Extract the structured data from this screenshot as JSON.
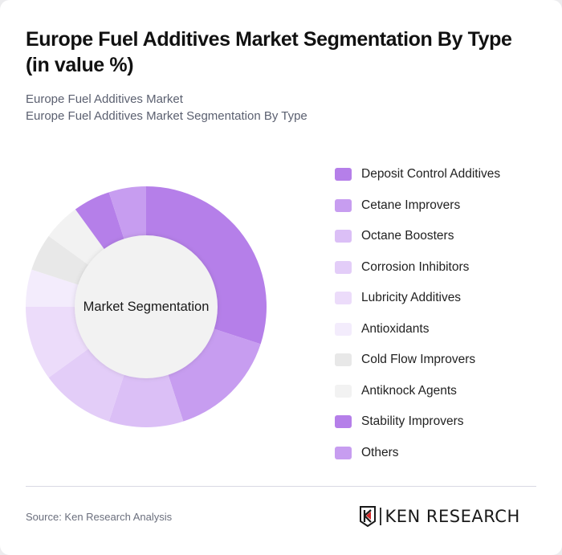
{
  "header": {
    "title": "Europe Fuel Additives Market Segmentation By Type (in value %)",
    "subtitle_line1": "Europe Fuel Additives Market",
    "subtitle_line2": "Europe Fuel Additives Market Segmentation By Type"
  },
  "chart": {
    "center_label": "Market Segmentation",
    "inner_color": "#f2f2f2"
  },
  "footer": {
    "source": "Source: Ken Research Analysis",
    "logo_text": "KEN RESEARCH",
    "logo_accent": "#d42a2a"
  },
  "chart_data": {
    "type": "pie",
    "subtype": "donut",
    "title": "Europe Fuel Additives Market Segmentation By Type (in value %)",
    "center_label": "Market Segmentation",
    "legend_position": "right",
    "categories": [
      "Deposit Control Additives",
      "Cetane Improvers",
      "Octane Boosters",
      "Corrosion Inhibitors",
      "Lubricity Additives",
      "Antioxidants",
      "Cold Flow Improvers",
      "Antiknock Agents",
      "Stability Improvers",
      "Others"
    ],
    "values": [
      30,
      15,
      10,
      10,
      10,
      5,
      5,
      5,
      5,
      5
    ],
    "colors": [
      "#b57fe9",
      "#c79df0",
      "#dbbff6",
      "#e3cdf8",
      "#ecdcfa",
      "#f3ecfc",
      "#e8e8e8",
      "#f2f2f2",
      "#b57fe9",
      "#c79df0"
    ],
    "unit": "%"
  },
  "legend": {
    "items": [
      {
        "label": "Deposit Control Additives",
        "color": "#b57fe9"
      },
      {
        "label": "Cetane Improvers",
        "color": "#c79df0"
      },
      {
        "label": "Octane Boosters",
        "color": "#dbbff6"
      },
      {
        "label": "Corrosion Inhibitors",
        "color": "#e3cdf8"
      },
      {
        "label": "Lubricity Additives",
        "color": "#ecdcfa"
      },
      {
        "label": "Antioxidants",
        "color": "#f3ecfc"
      },
      {
        "label": "Cold Flow Improvers",
        "color": "#e8e8e8"
      },
      {
        "label": "Antiknock Agents",
        "color": "#f2f2f2"
      },
      {
        "label": "Stability Improvers",
        "color": "#b57fe9"
      },
      {
        "label": "Others",
        "color": "#c79df0"
      }
    ]
  }
}
